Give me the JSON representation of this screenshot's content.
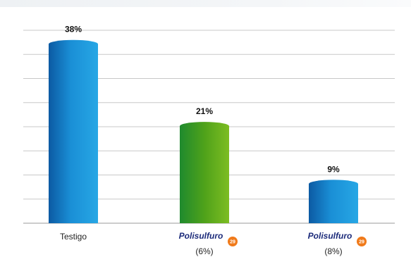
{
  "chart_data": {
    "type": "bar",
    "categories": [
      "Testigo",
      "Polisulfuro 29",
      "Polisulfuro 29"
    ],
    "category_sublabels": [
      "",
      "(6%)",
      "(8%)"
    ],
    "values": [
      38,
      21,
      9
    ],
    "value_labels": [
      "38%",
      "21%",
      "9%"
    ],
    "title": "",
    "xlabel": "",
    "ylabel": "",
    "ylim": [
      0,
      40
    ],
    "grid": true,
    "legend": "none",
    "bar_colors": [
      "#1a8fd6",
      "#4fa21a",
      "#1a8fd6"
    ],
    "logo": {
      "word": "Polisulfuro",
      "number": "29",
      "word_color": "#1b2a7a",
      "badge_color": "#f07a1a"
    }
  }
}
